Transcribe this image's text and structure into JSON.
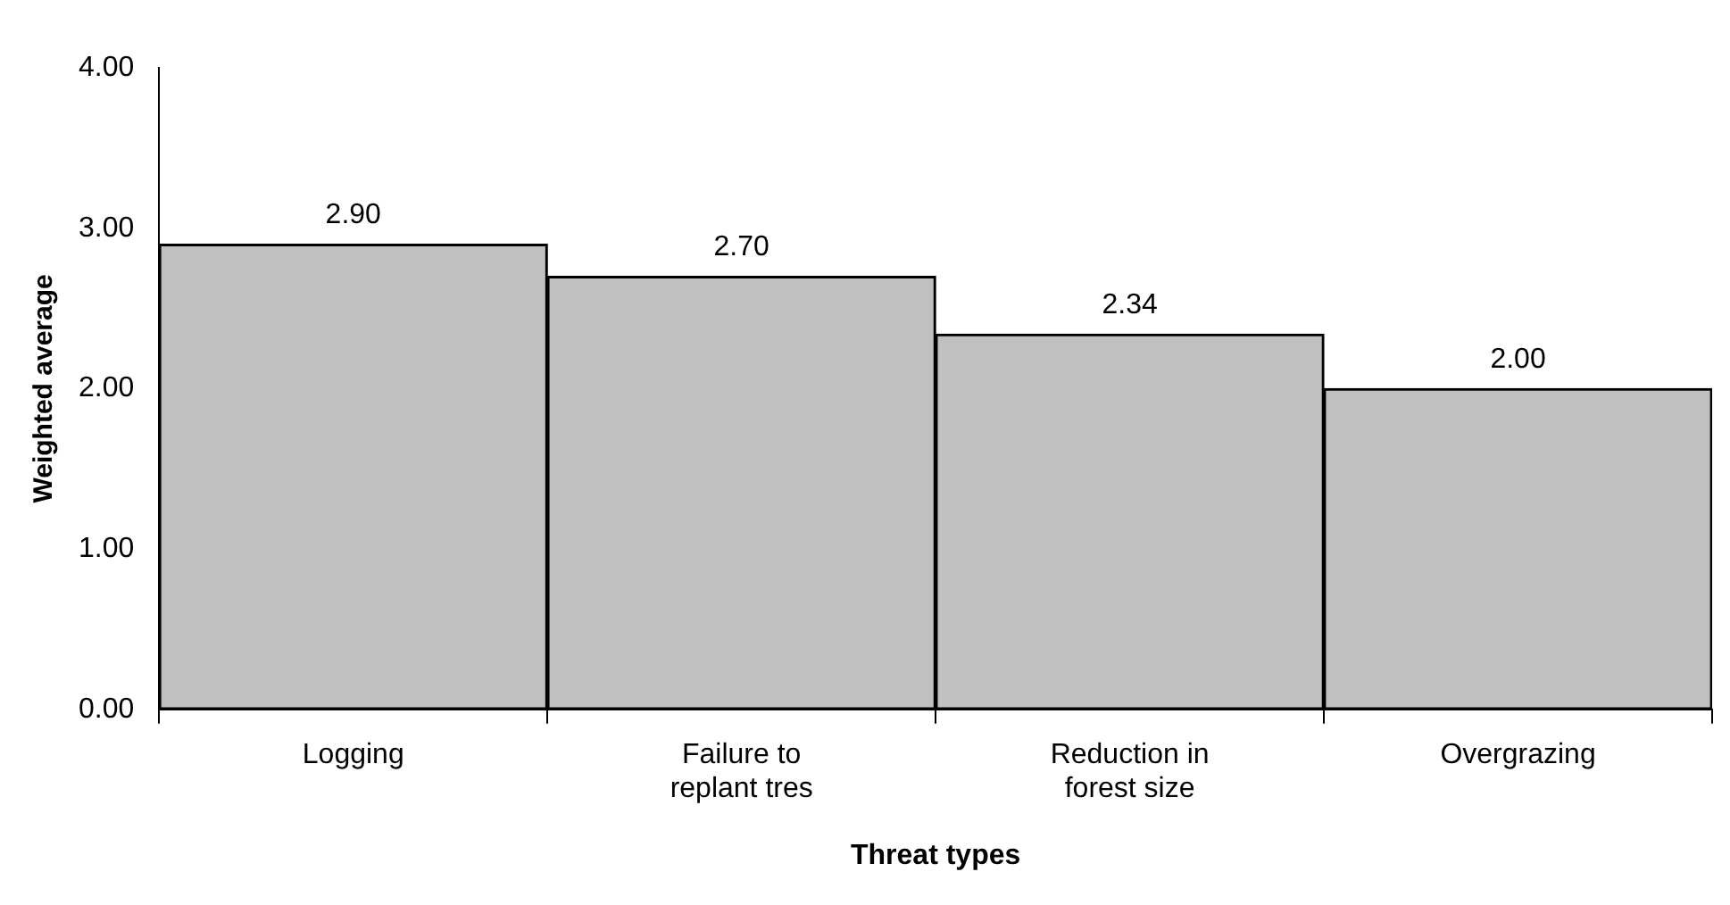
{
  "chart_data": {
    "type": "bar",
    "xlabel": "Threat types",
    "ylabel": "Weighted average",
    "categories": [
      "Logging",
      "Failure to replant tres",
      "Reduction in forest size",
      "Overgrazing"
    ],
    "values": [
      2.9,
      2.7,
      2.34,
      2.0
    ],
    "color": "#c0c0c0",
    "value_labels": [
      "2.90",
      "2.70",
      "2.34",
      "2.00"
    ],
    "ylim": [
      0,
      4
    ],
    "yticks": [
      {
        "value": 0,
        "label": "0.00"
      },
      {
        "value": 1,
        "label": "1.00"
      },
      {
        "value": 2,
        "label": "2.00"
      },
      {
        "value": 3,
        "label": "3.00"
      },
      {
        "value": 4,
        "label": "4.00"
      }
    ],
    "grid": false,
    "legend": false
  }
}
